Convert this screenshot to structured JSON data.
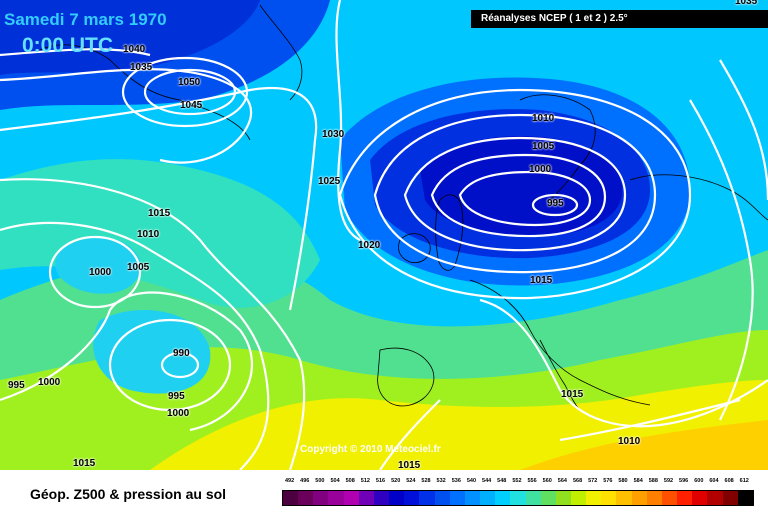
{
  "header": {
    "date": "Samedi 7 mars 1970",
    "time": "0:00 UTC",
    "source": "Réanalyses NCEP ( 1 et 2 ) 2.5°"
  },
  "footer": {
    "copyright": "Copyright © 2010 Meteociel.fr",
    "legend_title": "Géop. Z500 & pression au sol"
  },
  "isobar_labels": [
    "1040",
    "1035",
    "1050",
    "1045",
    "1030",
    "1025",
    "1015",
    "1010",
    "1005",
    "1000",
    "990",
    "995",
    "1000",
    "995",
    "1000",
    "1015",
    "1020",
    "1010",
    "1005",
    "1000",
    "995",
    "1015",
    "1015",
    "1010",
    "1015",
    "1035"
  ],
  "scale": {
    "ticks": [
      "492",
      "496",
      "500",
      "504",
      "508",
      "512",
      "516",
      "520",
      "524",
      "528",
      "532",
      "536",
      "540",
      "544",
      "548",
      "552",
      "556",
      "560",
      "564",
      "568",
      "572",
      "576",
      "580",
      "584",
      "588",
      "592",
      "596",
      "600",
      "604",
      "608",
      "612"
    ],
    "colors": [
      "#4d0040",
      "#6a005a",
      "#800080",
      "#9a009a",
      "#b000b0",
      "#7000b8",
      "#3000c0",
      "#0000c8",
      "#0010d8",
      "#0030e8",
      "#0050f0",
      "#0070ff",
      "#0090ff",
      "#00b0ff",
      "#00d0ff",
      "#20e0e0",
      "#40e0a0",
      "#60e060",
      "#90e020",
      "#c0f000",
      "#f0f000",
      "#ffe000",
      "#ffc000",
      "#ffa000",
      "#ff8000",
      "#ff5000",
      "#ff2000",
      "#e00000",
      "#b00000",
      "#800000",
      "#000000"
    ]
  }
}
